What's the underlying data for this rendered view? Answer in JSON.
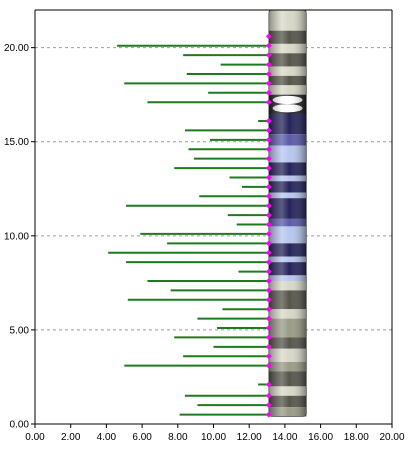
{
  "colors": {
    "background": "#ffffff",
    "axis": "#000000",
    "gridline": "#9e9e9e",
    "stem": "#1e7a1e",
    "marker": "#ff00ff",
    "band_light": "#d8d8c8",
    "band_mid": "#9a9a86",
    "band_dark": "#55554a",
    "band_blue_light": "#b8c6ee",
    "band_blue_mid": "#5a5aa8",
    "band_blue_dark": "#24245a",
    "centromere": "#202020"
  },
  "chart_data": {
    "type": "lollipop",
    "title": "",
    "xlabel": "",
    "ylabel": "",
    "xlim": [
      0,
      20
    ],
    "ylim": [
      0,
      22
    ],
    "x_ticks": [
      "0.00",
      "2.00",
      "4.00",
      "6.00",
      "8.00",
      "10.00",
      "12.00",
      "14.00",
      "16.00",
      "18.00",
      "20.00"
    ],
    "y_ticks": [
      "0.00",
      "5.00",
      "10.00",
      "15.00",
      "20.00"
    ],
    "y_grid": true,
    "x_grid": false,
    "stem_end_x": 13.1,
    "series": [
      {
        "points": [
          {
            "y": 20.6,
            "x": 13.1
          },
          {
            "y": 20.1,
            "x": 4.6
          },
          {
            "y": 19.6,
            "x": 8.3
          },
          {
            "y": 19.1,
            "x": 10.4
          },
          {
            "y": 18.6,
            "x": 8.5
          },
          {
            "y": 18.1,
            "x": 5.0
          },
          {
            "y": 17.6,
            "x": 9.7
          },
          {
            "y": 17.1,
            "x": 6.3
          },
          {
            "y": 16.1,
            "x": 12.5
          },
          {
            "y": 15.6,
            "x": 8.4
          },
          {
            "y": 15.1,
            "x": 9.8
          },
          {
            "y": 14.6,
            "x": 8.6
          },
          {
            "y": 14.1,
            "x": 8.9
          },
          {
            "y": 13.6,
            "x": 7.8
          },
          {
            "y": 13.1,
            "x": 10.9
          },
          {
            "y": 12.6,
            "x": 11.6
          },
          {
            "y": 12.1,
            "x": 9.2
          },
          {
            "y": 11.6,
            "x": 5.1
          },
          {
            "y": 11.1,
            "x": 10.8
          },
          {
            "y": 10.6,
            "x": 11.3
          },
          {
            "y": 10.1,
            "x": 5.9
          },
          {
            "y": 9.6,
            "x": 7.4
          },
          {
            "y": 9.1,
            "x": 4.1
          },
          {
            "y": 8.6,
            "x": 5.1
          },
          {
            "y": 8.1,
            "x": 11.4
          },
          {
            "y": 7.6,
            "x": 6.3
          },
          {
            "y": 7.1,
            "x": 7.6
          },
          {
            "y": 6.6,
            "x": 5.2
          },
          {
            "y": 6.1,
            "x": 10.5
          },
          {
            "y": 5.6,
            "x": 9.1
          },
          {
            "y": 5.1,
            "x": 10.2
          },
          {
            "y": 4.6,
            "x": 7.8
          },
          {
            "y": 4.1,
            "x": 10.0
          },
          {
            "y": 3.6,
            "x": 8.3
          },
          {
            "y": 3.1,
            "x": 5.0
          },
          {
            "y": 2.1,
            "x": 12.5
          },
          {
            "y": 1.5,
            "x": 8.4
          },
          {
            "y": 1.0,
            "x": 9.1
          },
          {
            "y": 0.5,
            "x": 8.1
          }
        ]
      }
    ],
    "ideogram": {
      "x_range": [
        13.1,
        15.2
      ],
      "bands": [
        {
          "y0": 20.9,
          "y1": 22.0,
          "shade": "light"
        },
        {
          "y0": 20.2,
          "y1": 20.9,
          "shade": "dark"
        },
        {
          "y0": 19.7,
          "y1": 20.2,
          "shade": "light"
        },
        {
          "y0": 19.0,
          "y1": 19.7,
          "shade": "dark"
        },
        {
          "y0": 18.5,
          "y1": 19.0,
          "shade": "light"
        },
        {
          "y0": 18.0,
          "y1": 18.5,
          "shade": "dark"
        },
        {
          "y0": 17.5,
          "y1": 18.0,
          "shade": "light"
        },
        {
          "y0": 16.5,
          "y1": 17.5,
          "shade": "centromere"
        },
        {
          "y0": 15.4,
          "y1": 16.5,
          "shade": "blue_dark"
        },
        {
          "y0": 14.8,
          "y1": 15.4,
          "shade": "blue_mid"
        },
        {
          "y0": 13.9,
          "y1": 14.8,
          "shade": "blue_light"
        },
        {
          "y0": 13.2,
          "y1": 13.9,
          "shade": "blue_dark"
        },
        {
          "y0": 12.9,
          "y1": 13.2,
          "shade": "blue_light"
        },
        {
          "y0": 12.3,
          "y1": 12.9,
          "shade": "blue_dark"
        },
        {
          "y0": 12.0,
          "y1": 12.3,
          "shade": "blue_light"
        },
        {
          "y0": 10.9,
          "y1": 12.0,
          "shade": "blue_dark"
        },
        {
          "y0": 10.5,
          "y1": 10.9,
          "shade": "blue_mid"
        },
        {
          "y0": 9.6,
          "y1": 10.5,
          "shade": "blue_light"
        },
        {
          "y0": 8.9,
          "y1": 9.6,
          "shade": "blue_dark"
        },
        {
          "y0": 8.6,
          "y1": 8.9,
          "shade": "blue_light"
        },
        {
          "y0": 7.9,
          "y1": 8.6,
          "shade": "blue_dark"
        },
        {
          "y0": 7.6,
          "y1": 7.9,
          "shade": "blue_light"
        },
        {
          "y0": 7.1,
          "y1": 7.6,
          "shade": "light"
        },
        {
          "y0": 6.1,
          "y1": 7.1,
          "shade": "dark"
        },
        {
          "y0": 5.6,
          "y1": 6.1,
          "shade": "light"
        },
        {
          "y0": 4.6,
          "y1": 5.6,
          "shade": "mid"
        },
        {
          "y0": 4.0,
          "y1": 4.6,
          "shade": "dark"
        },
        {
          "y0": 3.3,
          "y1": 4.0,
          "shade": "light"
        },
        {
          "y0": 2.8,
          "y1": 3.3,
          "shade": "mid"
        },
        {
          "y0": 2.0,
          "y1": 2.8,
          "shade": "dark"
        },
        {
          "y0": 1.5,
          "y1": 2.0,
          "shade": "light"
        },
        {
          "y0": 0.9,
          "y1": 1.5,
          "shade": "dark"
        },
        {
          "y0": 0.4,
          "y1": 0.9,
          "shade": "mid"
        }
      ]
    }
  }
}
